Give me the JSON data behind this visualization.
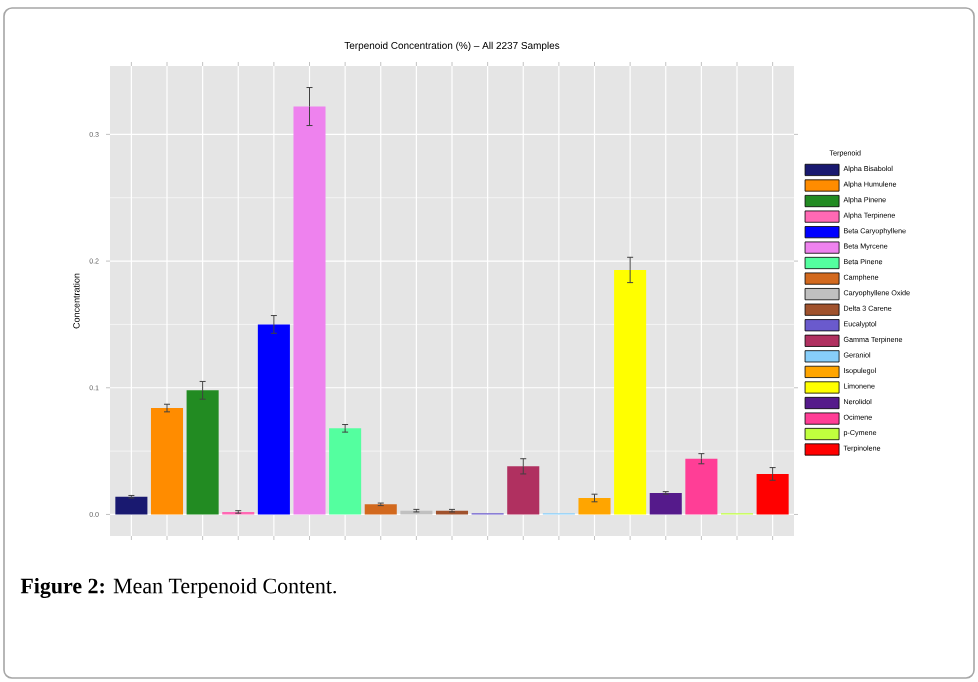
{
  "chart_data": {
    "type": "bar",
    "title": "Terpenoid Concentration (%) – All 2237 Samples",
    "ylabel": "Concentration",
    "legend_title": "Terpenoid",
    "categories": [
      null,
      null,
      null,
      null,
      null,
      null,
      null,
      null,
      null,
      null,
      null,
      null,
      null,
      null,
      null,
      null,
      null,
      null,
      null
    ],
    "series": [
      {
        "name": "Alpha Bisabolol",
        "color": "#191970",
        "values": [
          0.014,
          null,
          null,
          null,
          null,
          null,
          null,
          null,
          null,
          null,
          null,
          null,
          null,
          null,
          null,
          null,
          null,
          null,
          null
        ],
        "errors": [
          0.001,
          null,
          null,
          null,
          null,
          null,
          null,
          null,
          null,
          null,
          null,
          null,
          null,
          null,
          null,
          null,
          null,
          null,
          null
        ]
      },
      {
        "name": "Alpha Humulene",
        "color": "#ff8c00",
        "values": [
          null,
          0.084,
          null,
          null,
          null,
          null,
          null,
          null,
          null,
          null,
          null,
          null,
          null,
          null,
          null,
          null,
          null,
          null,
          null
        ],
        "errors": [
          null,
          0.003,
          null,
          null,
          null,
          null,
          null,
          null,
          null,
          null,
          null,
          null,
          null,
          null,
          null,
          null,
          null,
          null,
          null
        ]
      },
      {
        "name": "Alpha Pinene",
        "color": "#228b22",
        "values": [
          null,
          null,
          0.098,
          null,
          null,
          null,
          null,
          null,
          null,
          null,
          null,
          null,
          null,
          null,
          null,
          null,
          null,
          null,
          null
        ],
        "errors": [
          null,
          null,
          0.007,
          null,
          null,
          null,
          null,
          null,
          null,
          null,
          null,
          null,
          null,
          null,
          null,
          null,
          null,
          null,
          null
        ]
      },
      {
        "name": "Alpha Terpinene",
        "color": "#ff69b4",
        "values": [
          null,
          null,
          null,
          0.002,
          null,
          null,
          null,
          null,
          null,
          null,
          null,
          null,
          null,
          null,
          null,
          null,
          null,
          null,
          null
        ],
        "errors": [
          null,
          null,
          null,
          0.001,
          null,
          null,
          null,
          null,
          null,
          null,
          null,
          null,
          null,
          null,
          null,
          null,
          null,
          null,
          null
        ]
      },
      {
        "name": "Beta Caryophyllene",
        "color": "#0000ff",
        "values": [
          null,
          null,
          null,
          null,
          0.15,
          null,
          null,
          null,
          null,
          null,
          null,
          null,
          null,
          null,
          null,
          null,
          null,
          null,
          null
        ],
        "errors": [
          null,
          null,
          null,
          null,
          0.007,
          null,
          null,
          null,
          null,
          null,
          null,
          null,
          null,
          null,
          null,
          null,
          null,
          null,
          null
        ]
      },
      {
        "name": "Beta Myrcene",
        "color": "#ee82ee",
        "values": [
          null,
          null,
          null,
          null,
          null,
          0.322,
          null,
          null,
          null,
          null,
          null,
          null,
          null,
          null,
          null,
          null,
          null,
          null,
          null
        ],
        "errors": [
          null,
          null,
          null,
          null,
          null,
          0.015,
          null,
          null,
          null,
          null,
          null,
          null,
          null,
          null,
          null,
          null,
          null,
          null,
          null
        ]
      },
      {
        "name": "Beta Pinene",
        "color": "#54ff9f",
        "values": [
          null,
          null,
          null,
          null,
          null,
          null,
          0.068,
          null,
          null,
          null,
          null,
          null,
          null,
          null,
          null,
          null,
          null,
          null,
          null
        ],
        "errors": [
          null,
          null,
          null,
          null,
          null,
          null,
          0.003,
          null,
          null,
          null,
          null,
          null,
          null,
          null,
          null,
          null,
          null,
          null,
          null
        ]
      },
      {
        "name": "Camphene",
        "color": "#d2691e",
        "values": [
          null,
          null,
          null,
          null,
          null,
          null,
          null,
          0.008,
          null,
          null,
          null,
          null,
          null,
          null,
          null,
          null,
          null,
          null,
          null
        ],
        "errors": [
          null,
          null,
          null,
          null,
          null,
          null,
          null,
          0.001,
          null,
          null,
          null,
          null,
          null,
          null,
          null,
          null,
          null,
          null,
          null
        ]
      },
      {
        "name": "Caryophyllene Oxide",
        "color": "#c0c0c0",
        "values": [
          null,
          null,
          null,
          null,
          null,
          null,
          null,
          null,
          0.003,
          null,
          null,
          null,
          null,
          null,
          null,
          null,
          null,
          null,
          null
        ],
        "errors": [
          null,
          null,
          null,
          null,
          null,
          null,
          null,
          null,
          0.001,
          null,
          null,
          null,
          null,
          null,
          null,
          null,
          null,
          null,
          null
        ]
      },
      {
        "name": "Delta 3 Carene",
        "color": "#a0522d",
        "values": [
          null,
          null,
          null,
          null,
          null,
          null,
          null,
          null,
          null,
          0.003,
          null,
          null,
          null,
          null,
          null,
          null,
          null,
          null,
          null
        ],
        "errors": [
          null,
          null,
          null,
          null,
          null,
          null,
          null,
          null,
          null,
          0.001,
          null,
          null,
          null,
          null,
          null,
          null,
          null,
          null,
          null
        ]
      },
      {
        "name": "Eucalyptol",
        "color": "#6a5acd",
        "values": [
          null,
          null,
          null,
          null,
          null,
          null,
          null,
          null,
          null,
          null,
          0.001,
          null,
          null,
          null,
          null,
          null,
          null,
          null,
          null
        ]
      },
      {
        "name": "Gamma Terpinene",
        "color": "#b03060",
        "values": [
          null,
          null,
          null,
          null,
          null,
          null,
          null,
          null,
          null,
          null,
          null,
          0.038,
          null,
          null,
          null,
          null,
          null,
          null,
          null
        ],
        "errors": [
          null,
          null,
          null,
          null,
          null,
          null,
          null,
          null,
          null,
          null,
          null,
          0.006,
          null,
          null,
          null,
          null,
          null,
          null,
          null
        ]
      },
      {
        "name": "Geraniol",
        "color": "#87cefa",
        "values": [
          null,
          null,
          null,
          null,
          null,
          null,
          null,
          null,
          null,
          null,
          null,
          null,
          0.001,
          null,
          null,
          null,
          null,
          null,
          null
        ]
      },
      {
        "name": "Isopulegol",
        "color": "#ffa500",
        "values": [
          null,
          null,
          null,
          null,
          null,
          null,
          null,
          null,
          null,
          null,
          null,
          null,
          null,
          0.013,
          null,
          null,
          null,
          null,
          null
        ],
        "errors": [
          null,
          null,
          null,
          null,
          null,
          null,
          null,
          null,
          null,
          null,
          null,
          null,
          null,
          0.003,
          null,
          null,
          null,
          null,
          null
        ]
      },
      {
        "name": "Limonene",
        "color": "#ffff00",
        "values": [
          null,
          null,
          null,
          null,
          null,
          null,
          null,
          null,
          null,
          null,
          null,
          null,
          null,
          null,
          0.193,
          null,
          null,
          null,
          null
        ],
        "errors": [
          null,
          null,
          null,
          null,
          null,
          null,
          null,
          null,
          null,
          null,
          null,
          null,
          null,
          null,
          0.01,
          null,
          null,
          null,
          null
        ]
      },
      {
        "name": "Nerolidol",
        "color": "#551a8b",
        "values": [
          null,
          null,
          null,
          null,
          null,
          null,
          null,
          null,
          null,
          null,
          null,
          null,
          null,
          null,
          null,
          0.017,
          null,
          null,
          null
        ],
        "errors": [
          null,
          null,
          null,
          null,
          null,
          null,
          null,
          null,
          null,
          null,
          null,
          null,
          null,
          null,
          null,
          0.001,
          null,
          null,
          null
        ]
      },
      {
        "name": "Ocimene",
        "color": "#ff3e96",
        "values": [
          null,
          null,
          null,
          null,
          null,
          null,
          null,
          null,
          null,
          null,
          null,
          null,
          null,
          null,
          null,
          null,
          0.044,
          null,
          null
        ],
        "errors": [
          null,
          null,
          null,
          null,
          null,
          null,
          null,
          null,
          null,
          null,
          null,
          null,
          null,
          null,
          null,
          null,
          0.004,
          null,
          null
        ]
      },
      {
        "name": "p-Cymene",
        "color": "#c0ff3e",
        "values": [
          null,
          null,
          null,
          null,
          null,
          null,
          null,
          null,
          null,
          null,
          null,
          null,
          null,
          null,
          null,
          null,
          null,
          0.001,
          null
        ]
      },
      {
        "name": "Terpinolene",
        "color": "#ff0000",
        "values": [
          null,
          null,
          null,
          null,
          null,
          null,
          null,
          null,
          null,
          null,
          null,
          null,
          null,
          null,
          null,
          null,
          null,
          null,
          0.032
        ],
        "errors": [
          null,
          null,
          null,
          null,
          null,
          null,
          null,
          null,
          null,
          null,
          null,
          null,
          null,
          null,
          null,
          null,
          null,
          null,
          0.005
        ]
      }
    ],
    "ylim": [
      -0.017,
      0.354
    ],
    "yticks": [
      {
        "value": 0,
        "label": "0.0"
      },
      {
        "value": 0.1,
        "label": "0.1"
      },
      {
        "value": 0.2,
        "label": "0.2"
      },
      {
        "value": 0.3,
        "label": "0.3"
      }
    ],
    "grid": true,
    "legend": "right",
    "tick_labels": "y",
    "annotations": [
      "**Figure 2:** Mean Terpenoid Content."
    ]
  }
}
